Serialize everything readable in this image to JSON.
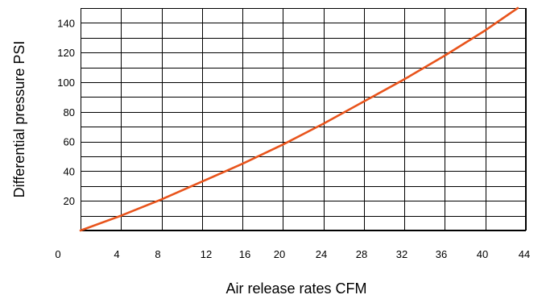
{
  "chart_data": {
    "type": "line",
    "title": "",
    "xlabel": "Air release rates CFM",
    "ylabel": "Differential pressure PSI",
    "xlim": [
      0,
      44
    ],
    "ylim": [
      0,
      150
    ],
    "x_ticks": [
      0,
      4,
      8,
      12,
      16,
      20,
      24,
      28,
      32,
      36,
      40,
      44
    ],
    "y_ticks": [
      20,
      40,
      60,
      80,
      100,
      120,
      140
    ],
    "grid": true,
    "series": [
      {
        "color": "#e8541c",
        "x": [
          0,
          4,
          8,
          12,
          16,
          20,
          24,
          28,
          32,
          36,
          40,
          43.2
        ],
        "y": [
          0,
          10,
          21,
          33,
          45,
          58,
          72,
          87,
          102,
          118,
          135,
          150
        ]
      }
    ]
  }
}
